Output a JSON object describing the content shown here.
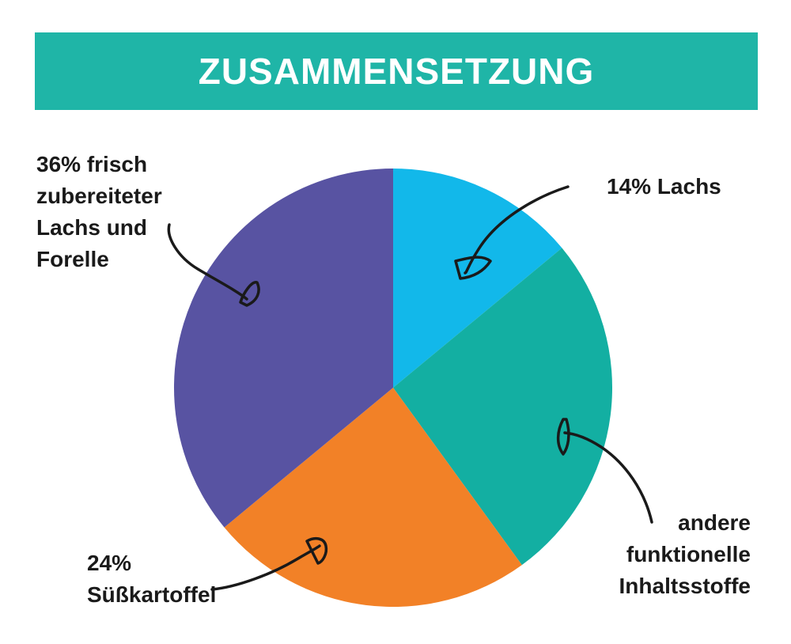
{
  "title": "ZUSAMMENSETZUNG",
  "colors": {
    "header": "#1fb5a7",
    "ink": "#1a1a1a"
  },
  "chart_data": {
    "type": "pie",
    "title": "ZUSAMMENSETZUNG",
    "slices": [
      {
        "label": "Lachs",
        "value": 14,
        "color": "#12b8ea",
        "label_lines": [
          "14% Lachs"
        ]
      },
      {
        "label": "andere funktionelle Inhaltsstoffe",
        "value": 26,
        "color": "#13afa2",
        "label_lines": [
          "andere",
          "funktionelle",
          "Inhaltsstoffe"
        ]
      },
      {
        "label": "Süßkartoffel",
        "value": 24,
        "color": "#f28127",
        "label_lines": [
          "24%",
          "Süßkartoffel"
        ]
      },
      {
        "label": "frisch zubereiteter Lachs und Forelle",
        "value": 36,
        "color": "#5853a2",
        "label_lines": [
          "36% frisch",
          "zubereiteter",
          "Lachs und",
          "Forelle"
        ]
      }
    ],
    "start": "12 o'clock",
    "direction": "clockwise"
  }
}
